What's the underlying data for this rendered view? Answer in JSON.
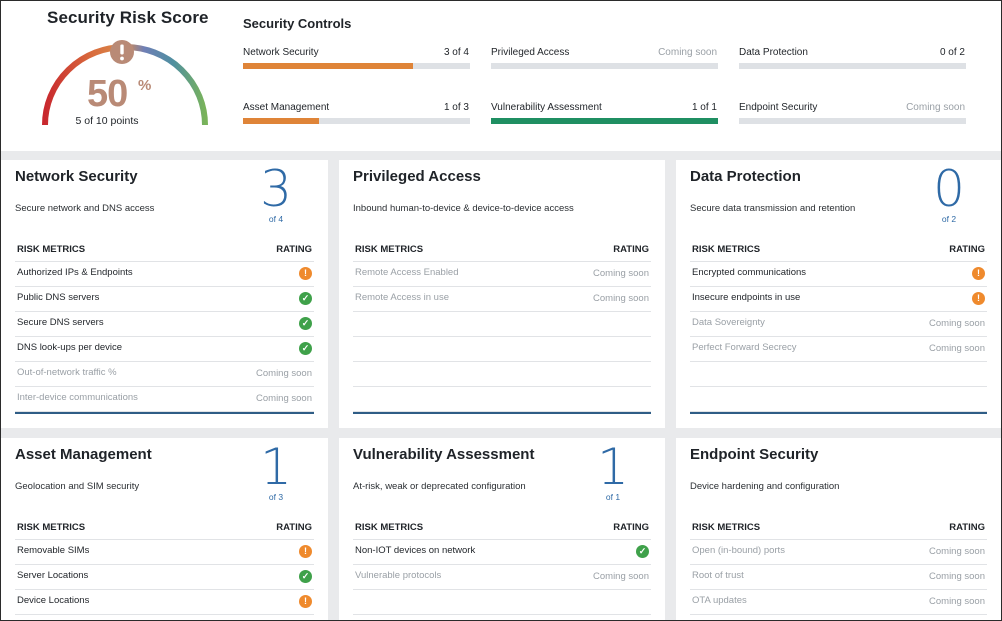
{
  "risk_score": {
    "title": "Security Risk Score",
    "percent": "50",
    "percent_symbol": "%",
    "points": "5 of 10 points",
    "alert_icon": "exclamation-icon"
  },
  "security_controls": {
    "title": "Security Controls",
    "items": [
      {
        "label": "Network Security",
        "value": "3 of 4",
        "fill": 0.75,
        "color": "#df8438"
      },
      {
        "label": "Privileged Access",
        "value": "Coming soon",
        "fill": 0,
        "color": "#df8438"
      },
      {
        "label": "Data Protection",
        "value": "0 of 2",
        "fill": 0,
        "color": "#df8438"
      },
      {
        "label": "Asset Management",
        "value": "1 of 3",
        "fill": 0.333,
        "color": "#df8438"
      },
      {
        "label": "Vulnerability Assessment",
        "value": "1 of 1",
        "fill": 1,
        "color": "#1f8f62"
      },
      {
        "label": "Endpoint Security",
        "value": "Coming soon",
        "fill": 0,
        "color": "#df8438"
      }
    ]
  },
  "cards": [
    {
      "title": "Network Security",
      "description": "Secure network and DNS access",
      "score": "3",
      "of": "of 4",
      "head_left": "RISK METRICS",
      "head_right": "RATING",
      "rows": [
        {
          "label": "Authorized IPs & Endpoints",
          "rating": "warn-icon",
          "muted": false
        },
        {
          "label": "Public DNS servers",
          "rating": "check-icon",
          "muted": false
        },
        {
          "label": "Secure DNS servers",
          "rating": "check-icon",
          "muted": false
        },
        {
          "label": "DNS look-ups per device",
          "rating": "check-icon",
          "muted": false
        },
        {
          "label": "Out-of-network traffic %",
          "rating": "Coming soon",
          "muted": true
        },
        {
          "label": "Inter-device communications",
          "rating": "Coming soon",
          "muted": true
        }
      ]
    },
    {
      "title": "Privileged Access",
      "description": "Inbound human-to-device & device-to-device access",
      "score": "",
      "of": "",
      "head_left": "RISK METRICS",
      "head_right": "RATING",
      "rows": [
        {
          "label": "Remote Access Enabled",
          "rating": "Coming soon",
          "muted": true
        },
        {
          "label": "Remote Access in use",
          "rating": "Coming soon",
          "muted": true
        },
        {
          "label": "",
          "rating": "",
          "muted": true
        },
        {
          "label": "",
          "rating": "",
          "muted": true
        },
        {
          "label": "",
          "rating": "",
          "muted": true
        },
        {
          "label": "",
          "rating": "",
          "muted": true
        }
      ]
    },
    {
      "title": "Data Protection",
      "description": "Secure data transmission and retention",
      "score": "0",
      "of": "of 2",
      "head_left": "RISK METRICS",
      "head_right": "RATING",
      "rows": [
        {
          "label": "Encrypted communications",
          "rating": "warn-icon",
          "muted": false
        },
        {
          "label": "Insecure endpoints in use",
          "rating": "warn-icon",
          "muted": false
        },
        {
          "label": "Data Sovereignty",
          "rating": "Coming soon",
          "muted": true
        },
        {
          "label": "Perfect Forward Secrecy",
          "rating": "Coming soon",
          "muted": true
        },
        {
          "label": "",
          "rating": "",
          "muted": true
        },
        {
          "label": "",
          "rating": "",
          "muted": true
        }
      ]
    },
    {
      "title": "Asset Management",
      "description": "Geolocation and SIM security",
      "score": "1",
      "of": "of 3",
      "head_left": "RISK METRICS",
      "head_right": "RATING",
      "rows": [
        {
          "label": "Removable SIMs",
          "rating": "warn-icon",
          "muted": false
        },
        {
          "label": "Server Locations",
          "rating": "check-icon",
          "muted": false
        },
        {
          "label": "Device Locations",
          "rating": "warn-icon",
          "muted": false
        }
      ]
    },
    {
      "title": "Vulnerability Assessment",
      "description": "At-risk, weak or deprecated configuration",
      "score": "1",
      "of": "of 1",
      "head_left": "RISK METRICS",
      "head_right": "RATING",
      "rows": [
        {
          "label": "Non-IOT devices on network",
          "rating": "check-icon",
          "muted": false
        },
        {
          "label": "Vulnerable protocols",
          "rating": "Coming soon",
          "muted": true
        },
        {
          "label": "",
          "rating": "",
          "muted": true
        }
      ]
    },
    {
      "title": "Endpoint Security",
      "description": "Device hardening and configuration",
      "score": "",
      "of": "",
      "head_left": "RISK METRICS",
      "head_right": "RATING",
      "rows": [
        {
          "label": "Open (in-bound) ports",
          "rating": "Coming soon",
          "muted": true
        },
        {
          "label": "Root of trust",
          "rating": "Coming soon",
          "muted": true
        },
        {
          "label": "OTA updates",
          "rating": "Coming soon",
          "muted": true
        }
      ]
    }
  ],
  "colors": {
    "warn": "#ef8a2d",
    "ok": "#3fa14a",
    "score_blue": "#2f6aa6",
    "gauge_pct": "#b98a76"
  }
}
